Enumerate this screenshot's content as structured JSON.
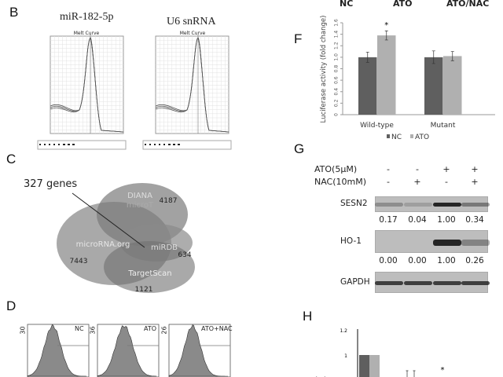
{
  "top_cut_labels": [
    "NC",
    "ATO",
    "ATO/NAC"
  ],
  "panels": {
    "B": "B",
    "C": "C",
    "D": "D",
    "F": "F",
    "G": "G",
    "H": "H"
  },
  "panel_b": {
    "titles": [
      "miR-182-5p",
      "U6 snRNA"
    ],
    "plot_title": "Melt Curve"
  },
  "panel_c": {
    "callout": "327 genes",
    "sets": [
      {
        "name": "DIANA",
        "name2": "microT",
        "count": "4187"
      },
      {
        "name": "microRNA.org",
        "count": "7443"
      },
      {
        "name": "miRDB",
        "count": "634"
      },
      {
        "name": "TargetScan",
        "count": "1121"
      }
    ]
  },
  "panel_d": {
    "histograms": [
      {
        "label": "NC",
        "ymax": "30"
      },
      {
        "label": "ATO",
        "ymax": "36"
      },
      {
        "label": "ATO+NAC",
        "ymax": "26"
      }
    ]
  },
  "panel_g": {
    "rows": [
      {
        "label": "ATO(5μM)",
        "marks": [
          "-",
          "-",
          "+",
          "+"
        ]
      },
      {
        "label": "NAC(10mM)",
        "marks": [
          "-",
          "+",
          "-",
          "+"
        ]
      }
    ],
    "blots": [
      {
        "label": "SESN2",
        "values": [
          "0.17",
          "0.04",
          "1.00",
          "0.34"
        ]
      },
      {
        "label": "HO-1",
        "values": [
          "0.00",
          "0.00",
          "1.00",
          "0.26"
        ]
      },
      {
        "label": "GAPDH",
        "values": []
      }
    ]
  },
  "chart_data": [
    {
      "type": "bar",
      "panel": "F",
      "ylabel": "Luciferase activity (fold change)",
      "categories": [
        "Wild-type",
        "Mutant"
      ],
      "series": [
        {
          "name": "NC",
          "values": [
            1.0,
            1.0
          ],
          "errors": [
            0.09,
            0.11
          ],
          "color": "#5f5f5f"
        },
        {
          "name": "ATO",
          "values": [
            1.38,
            1.02
          ],
          "errors": [
            0.08,
            0.08
          ],
          "color": "#b0b0b0"
        }
      ],
      "ylim": [
        0,
        1.6
      ],
      "yticks": [
        "0",
        "0.2",
        "0.4",
        "0.6",
        "0.8",
        "1.0",
        "1.2",
        "1.4",
        "1.6"
      ],
      "annotations": [
        "*"
      ],
      "legend": "bottom"
    },
    {
      "type": "bar",
      "panel": "H",
      "yticks": [
        "1.2",
        "1"
      ],
      "annotations": [
        "*"
      ]
    }
  ]
}
